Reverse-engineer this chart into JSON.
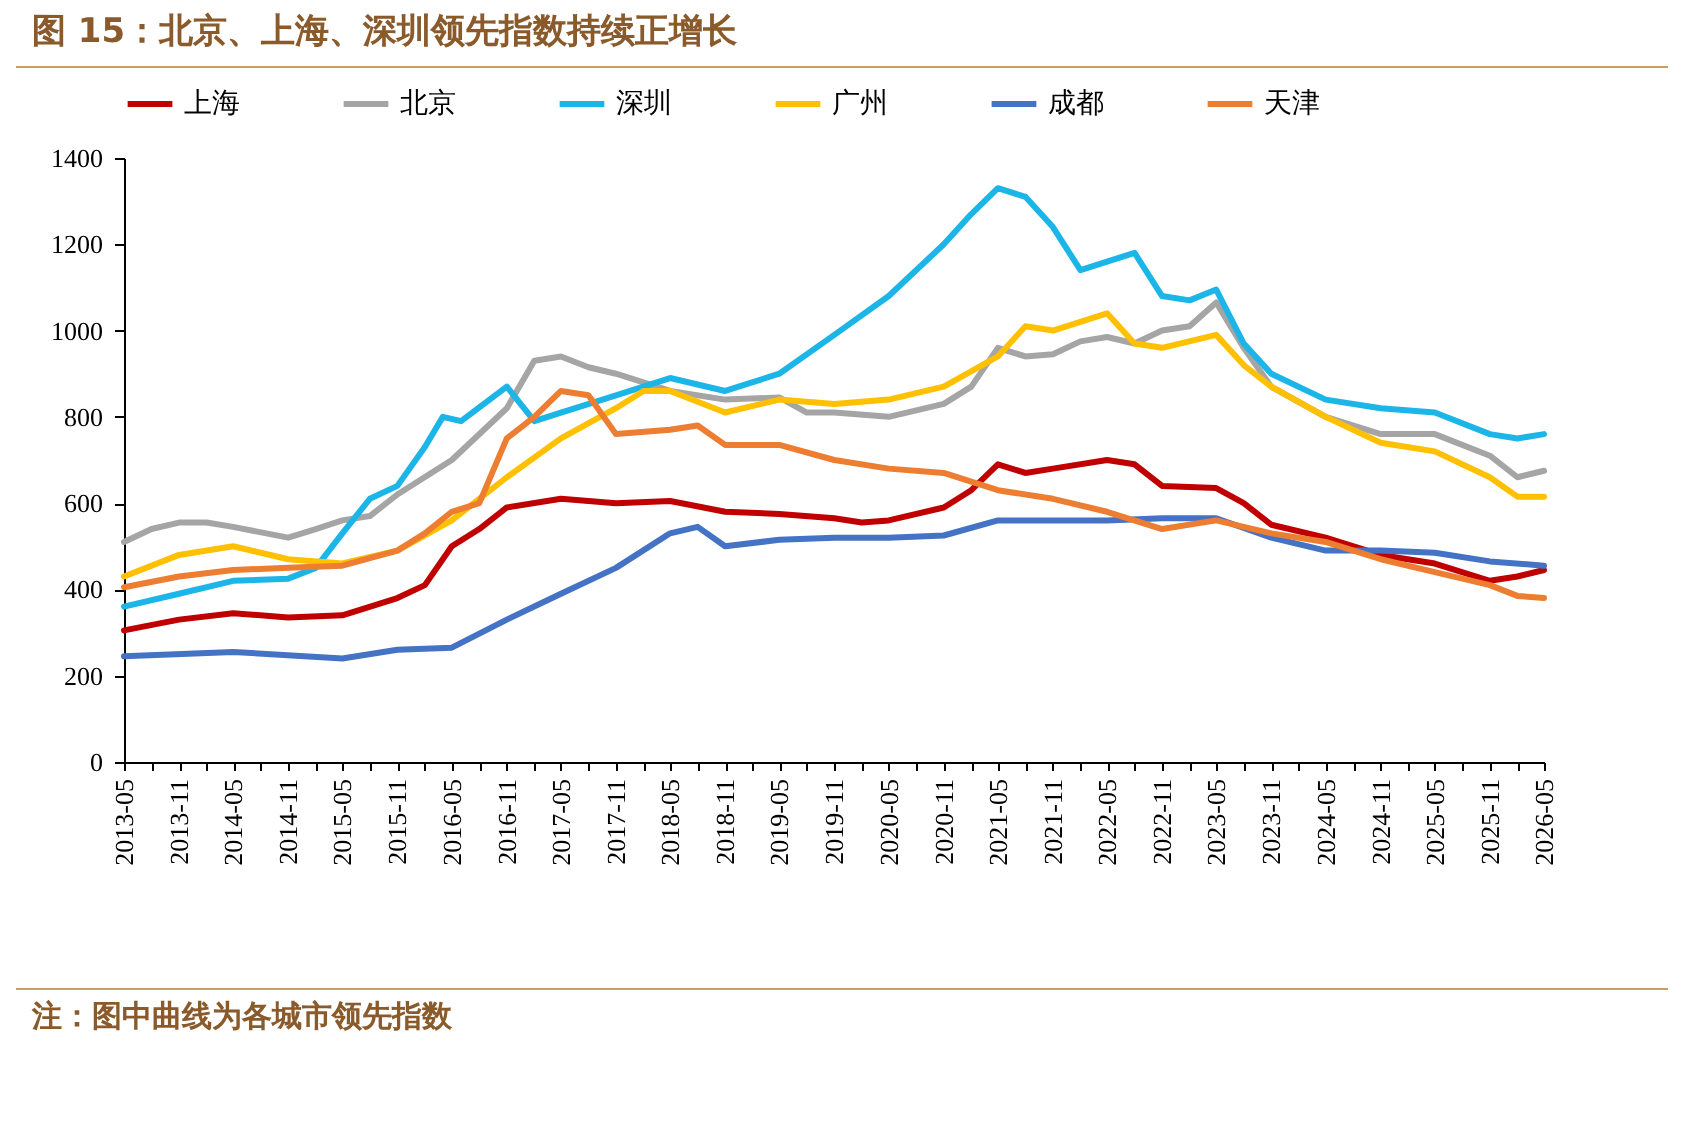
{
  "chart_data": {
    "type": "line",
    "title": "图 15：北京、上海、深圳领先指数持续正增长",
    "annotations": [
      "注：图中曲线为各城市领先指数"
    ],
    "ylim": [
      0,
      1400
    ],
    "yticks": [
      0,
      200,
      400,
      600,
      800,
      1000,
      1200,
      1400
    ],
    "xlim": [
      "2013-05",
      "2026-05"
    ],
    "xticks": [
      "2013-05",
      {
        "value": "2013-08",
        "label": null
      },
      "2013-11",
      {
        "value": "2014-02",
        "label": null
      },
      "2014-05",
      {
        "value": "2014-08",
        "label": null
      },
      "2014-11",
      {
        "value": "2015-02",
        "label": null
      },
      "2015-05",
      {
        "value": "2015-08",
        "label": null
      },
      "2015-11",
      {
        "value": "2016-02",
        "label": null
      },
      "2016-05",
      {
        "value": "2016-08",
        "label": null
      },
      "2016-11",
      {
        "value": "2017-02",
        "label": null
      },
      "2017-05",
      {
        "value": "2017-08",
        "label": null
      },
      "2017-11",
      {
        "value": "2018-02",
        "label": null
      },
      "2018-05",
      {
        "value": "2018-08",
        "label": null
      },
      "2018-11",
      {
        "value": "2019-02",
        "label": null
      },
      "2019-05",
      {
        "value": "2019-08",
        "label": null
      },
      "2019-11",
      {
        "value": "2020-02",
        "label": null
      },
      "2020-05",
      {
        "value": "2020-08",
        "label": null
      },
      "2020-11",
      {
        "value": "2021-02",
        "label": null
      },
      "2021-05",
      {
        "value": "2021-08",
        "label": null
      },
      "2021-11",
      {
        "value": "2022-02",
        "label": null
      },
      "2022-05",
      {
        "value": "2022-08",
        "label": null
      },
      "2022-11",
      {
        "value": "2023-02",
        "label": null
      },
      "2023-05",
      {
        "value": "2023-08",
        "label": null
      },
      "2023-11",
      {
        "value": "2024-02",
        "label": null
      },
      "2024-05",
      {
        "value": "2024-08",
        "label": null
      },
      "2024-11",
      {
        "value": "2025-02",
        "label": null
      },
      "2025-05",
      {
        "value": "2025-08",
        "label": null
      },
      "2025-11",
      {
        "value": "2026-02",
        "label": null
      },
      "2026-05"
    ],
    "grid": false,
    "legend": "top",
    "marker": "none",
    "line_style": "solid",
    "series": [
      {
        "name": "上海",
        "color": "#c00000",
        "x": [
          "2013-05",
          "2013-11",
          "2014-05",
          "2014-11",
          "2015-05",
          "2015-11",
          "2016-02",
          "2016-05",
          "2016-08",
          "2016-11",
          "2017-05",
          "2017-11",
          "2018-05",
          "2018-11",
          "2019-05",
          "2019-11",
          "2020-02",
          "2020-05",
          "2020-11",
          "2021-02",
          "2021-05",
          "2021-08",
          "2021-11",
          "2022-05",
          "2022-08",
          "2022-11",
          "2023-05",
          "2023-08",
          "2023-11",
          "2024-05",
          "2024-11",
          "2025-05",
          "2025-11",
          "2026-02",
          "2026-05"
        ],
        "values": [
          305,
          330,
          345,
          335,
          340,
          380,
          410,
          500,
          540,
          590,
          610,
          600,
          605,
          580,
          575,
          565,
          555,
          560,
          590,
          630,
          690,
          670,
          680,
          700,
          690,
          640,
          635,
          600,
          550,
          520,
          480,
          460,
          420,
          430,
          445
        ]
      },
      {
        "name": "北京",
        "color": "#a5a5a5",
        "x": [
          "2013-05",
          "2013-08",
          "2013-11",
          "2014-02",
          "2014-05",
          "2014-11",
          "2015-02",
          "2015-05",
          "2015-08",
          "2015-11",
          "2016-05",
          "2016-11",
          "2017-02",
          "2017-05",
          "2017-08",
          "2017-11",
          "2018-02",
          "2018-05",
          "2018-11",
          "2019-05",
          "2019-08",
          "2019-11",
          "2020-05",
          "2020-11",
          "2021-02",
          "2021-05",
          "2021-08",
          "2021-11",
          "2022-02",
          "2022-05",
          "2022-08",
          "2022-11",
          "2023-02",
          "2023-05",
          "2023-08",
          "2023-11",
          "2024-05",
          "2024-11",
          "2025-05",
          "2025-11",
          "2026-02",
          "2026-05"
        ],
        "values": [
          510,
          540,
          555,
          555,
          545,
          520,
          540,
          560,
          570,
          620,
          700,
          820,
          930,
          940,
          915,
          900,
          880,
          860,
          840,
          845,
          810,
          810,
          800,
          830,
          870,
          960,
          940,
          945,
          975,
          985,
          970,
          1000,
          1010,
          1065,
          960,
          870,
          800,
          760,
          760,
          710,
          660,
          675
        ]
      },
      {
        "name": "深圳",
        "color": "#1cb5e8",
        "x": [
          "2013-05",
          "2013-11",
          "2014-05",
          "2014-11",
          "2015-02",
          "2015-05",
          "2015-08",
          "2015-11",
          "2016-02",
          "2016-04",
          "2016-06",
          "2016-11",
          "2017-02",
          "2017-05",
          "2017-11",
          "2018-05",
          "2018-11",
          "2019-05",
          "2019-11",
          "2020-05",
          "2020-11",
          "2021-02",
          "2021-05",
          "2021-08",
          "2021-11",
          "2022-02",
          "2022-05",
          "2022-08",
          "2022-11",
          "2023-02",
          "2023-05",
          "2023-08",
          "2023-11",
          "2024-05",
          "2024-11",
          "2025-05",
          "2025-11",
          "2026-02",
          "2026-05"
        ],
        "values": [
          360,
          390,
          420,
          425,
          450,
          530,
          610,
          640,
          730,
          800,
          790,
          870,
          790,
          810,
          850,
          890,
          860,
          900,
          990,
          1080,
          1200,
          1270,
          1330,
          1310,
          1240,
          1140,
          1160,
          1180,
          1080,
          1070,
          1095,
          970,
          900,
          840,
          820,
          810,
          760,
          750,
          760
        ]
      },
      {
        "name": "广州",
        "color": "#ffc000",
        "x": [
          "2013-05",
          "2013-11",
          "2014-05",
          "2014-11",
          "2015-05",
          "2015-11",
          "2016-05",
          "2016-11",
          "2017-05",
          "2017-11",
          "2018-02",
          "2018-05",
          "2018-11",
          "2019-05",
          "2019-11",
          "2020-05",
          "2020-11",
          "2021-05",
          "2021-08",
          "2021-11",
          "2022-05",
          "2022-08",
          "2022-11",
          "2023-05",
          "2023-08",
          "2023-11",
          "2024-05",
          "2024-11",
          "2025-05",
          "2025-11",
          "2026-02",
          "2026-05"
        ],
        "values": [
          430,
          480,
          500,
          470,
          460,
          490,
          560,
          660,
          750,
          820,
          860,
          860,
          810,
          840,
          830,
          840,
          870,
          940,
          1010,
          1000,
          1040,
          970,
          960,
          990,
          920,
          870,
          800,
          740,
          720,
          660,
          615,
          615
        ]
      },
      {
        "name": "成都",
        "color": "#4472c4",
        "x": [
          "2013-05",
          "2014-05",
          "2015-05",
          "2015-11",
          "2016-05",
          "2016-11",
          "2017-05",
          "2017-11",
          "2018-05",
          "2018-08",
          "2018-11",
          "2019-05",
          "2019-11",
          "2020-05",
          "2020-11",
          "2021-05",
          "2021-11",
          "2022-05",
          "2022-11",
          "2023-05",
          "2023-11",
          "2024-05",
          "2024-11",
          "2025-05",
          "2025-11",
          "2026-05"
        ],
        "values": [
          245,
          255,
          240,
          260,
          265,
          330,
          390,
          450,
          530,
          545,
          500,
          515,
          520,
          520,
          525,
          560,
          560,
          560,
          565,
          565,
          520,
          490,
          490,
          485,
          465,
          455
        ]
      },
      {
        "name": "天津",
        "color": "#ed7d31",
        "x": [
          "2013-05",
          "2013-11",
          "2014-05",
          "2014-11",
          "2015-05",
          "2015-11",
          "2016-02",
          "2016-05",
          "2016-08",
          "2016-11",
          "2017-02",
          "2017-05",
          "2017-08",
          "2017-11",
          "2018-05",
          "2018-08",
          "2018-11",
          "2019-05",
          "2019-11",
          "2020-05",
          "2020-11",
          "2021-05",
          "2021-11",
          "2022-05",
          "2022-11",
          "2023-05",
          "2023-11",
          "2024-05",
          "2024-11",
          "2025-05",
          "2025-11",
          "2026-02",
          "2026-05"
        ],
        "values": [
          405,
          430,
          445,
          450,
          455,
          490,
          530,
          580,
          600,
          750,
          800,
          860,
          850,
          760,
          770,
          780,
          735,
          735,
          700,
          680,
          670,
          630,
          610,
          580,
          540,
          560,
          530,
          510,
          470,
          440,
          410,
          385,
          380
        ]
      }
    ]
  }
}
